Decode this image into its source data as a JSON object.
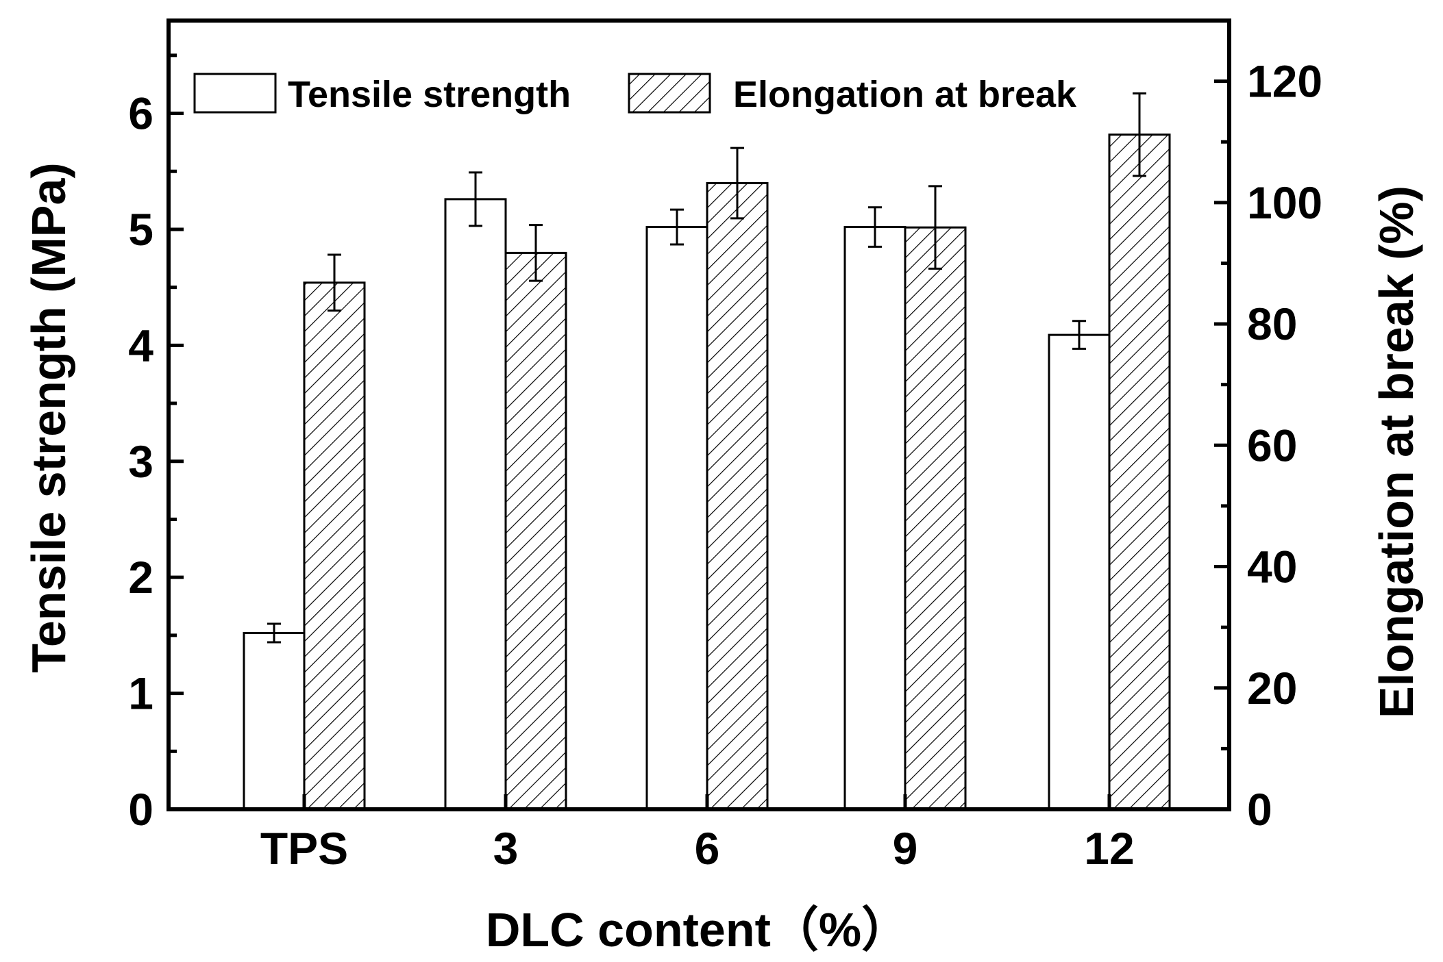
{
  "chart_data": {
    "type": "bar",
    "xlabel": "DLC content（%）",
    "ylabel_left": "Tensile strength (MPa)",
    "ylabel_right": "Elongation at break (%)",
    "categories": [
      "TPS",
      "3",
      "6",
      "9",
      "12"
    ],
    "ylim_left": [
      0,
      6.8
    ],
    "ylim_right": [
      0,
      130
    ],
    "yticks_left": [
      "0",
      "1",
      "2",
      "3",
      "4",
      "5",
      "6"
    ],
    "yticks_right": [
      "0",
      "20",
      "40",
      "60",
      "80",
      "100",
      "120"
    ],
    "legend_position": "top",
    "grid": false,
    "series": [
      {
        "name": "Tensile strength",
        "axis": "left",
        "pattern": "plain",
        "values": [
          1.52,
          5.26,
          5.02,
          5.02,
          4.09
        ],
        "errors": [
          0.08,
          0.23,
          0.15,
          0.17,
          0.12
        ]
      },
      {
        "name": "Elongation at break",
        "axis": "right",
        "pattern": "hatched",
        "values": [
          86.8,
          91.7,
          103.2,
          95.9,
          111.2
        ],
        "errors": [
          4.6,
          4.6,
          5.8,
          6.8,
          6.8
        ]
      }
    ]
  }
}
